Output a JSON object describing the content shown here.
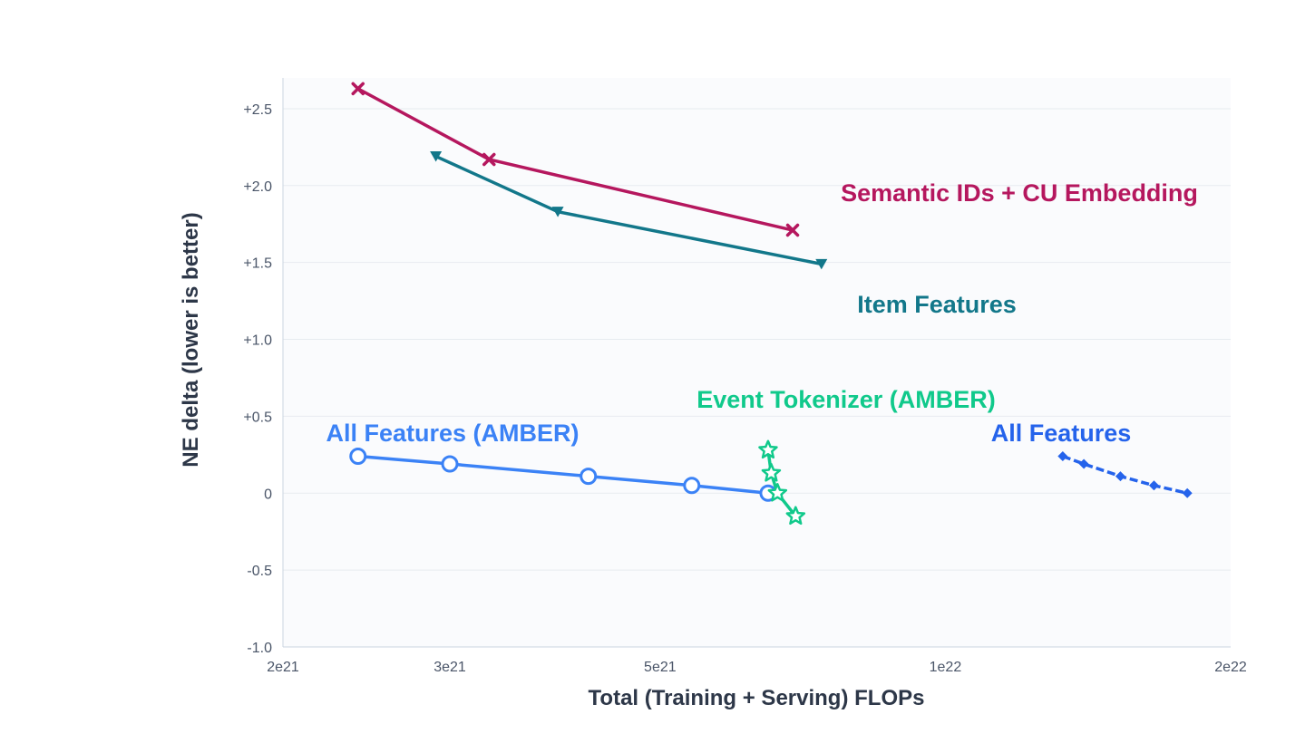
{
  "chart_data": {
    "type": "line",
    "xlabel": "Total (Training + Serving) FLOPs",
    "ylabel": "NE delta (lower is better)",
    "x_scale": "log",
    "xlim": [
      2e+21,
      2e+22
    ],
    "ylim": [
      -1.0,
      2.7
    ],
    "x_ticks": [
      {
        "value": 2e+21,
        "label": "2e21"
      },
      {
        "value": 3e+21,
        "label": "3e21"
      },
      {
        "value": 5e+21,
        "label": "5e21"
      },
      {
        "value": 1e+22,
        "label": "1e22"
      },
      {
        "value": 2e+22,
        "label": "2e22"
      }
    ],
    "y_ticks": [
      {
        "value": 2.5,
        "label": "+2.5"
      },
      {
        "value": 2.0,
        "label": "+2.0"
      },
      {
        "value": 1.5,
        "label": "+1.5"
      },
      {
        "value": 1.0,
        "label": "+1.0"
      },
      {
        "value": 0.5,
        "label": "+0.5"
      },
      {
        "value": 0.0,
        "label": "0"
      },
      {
        "value": -0.5,
        "label": "-0.5"
      },
      {
        "value": -1.0,
        "label": "-1.0"
      }
    ],
    "grid": true,
    "series": [
      {
        "name": "Semantic IDs + CU Embedding",
        "color": "#b5175e",
        "marker": "x",
        "x": [
          2.4e+21,
          3.3e+21,
          6.9e+21
        ],
        "y": [
          2.63,
          2.17,
          1.71
        ]
      },
      {
        "name": "Item Features",
        "color": "#12778a",
        "marker": "triangle-down",
        "x": [
          2.9e+21,
          3.9e+21,
          7.4e+21
        ],
        "y": [
          2.19,
          1.83,
          1.49
        ]
      },
      {
        "name": "All Features (AMBER)",
        "color": "#3b82f6",
        "marker": "circle-open",
        "x": [
          2.4e+21,
          3e+21,
          4.2e+21,
          5.4e+21,
          6.5e+21
        ],
        "y": [
          0.24,
          0.19,
          0.11,
          0.05,
          0.0
        ]
      },
      {
        "name": "Event Tokenizer (AMBER)",
        "color": "#10c98b",
        "marker": "star-open",
        "x": [
          6.5e+21,
          6.55e+21,
          6.65e+21,
          6.95e+21
        ],
        "y": [
          0.28,
          0.13,
          0.0,
          -0.15
        ]
      },
      {
        "name": "All Features",
        "color": "#2563eb",
        "marker": "diamond",
        "x": [
          1.33e+22,
          1.4e+22,
          1.53e+22,
          1.66e+22,
          1.8e+22
        ],
        "y": [
          0.24,
          0.19,
          0.11,
          0.05,
          0.0
        ]
      }
    ]
  }
}
